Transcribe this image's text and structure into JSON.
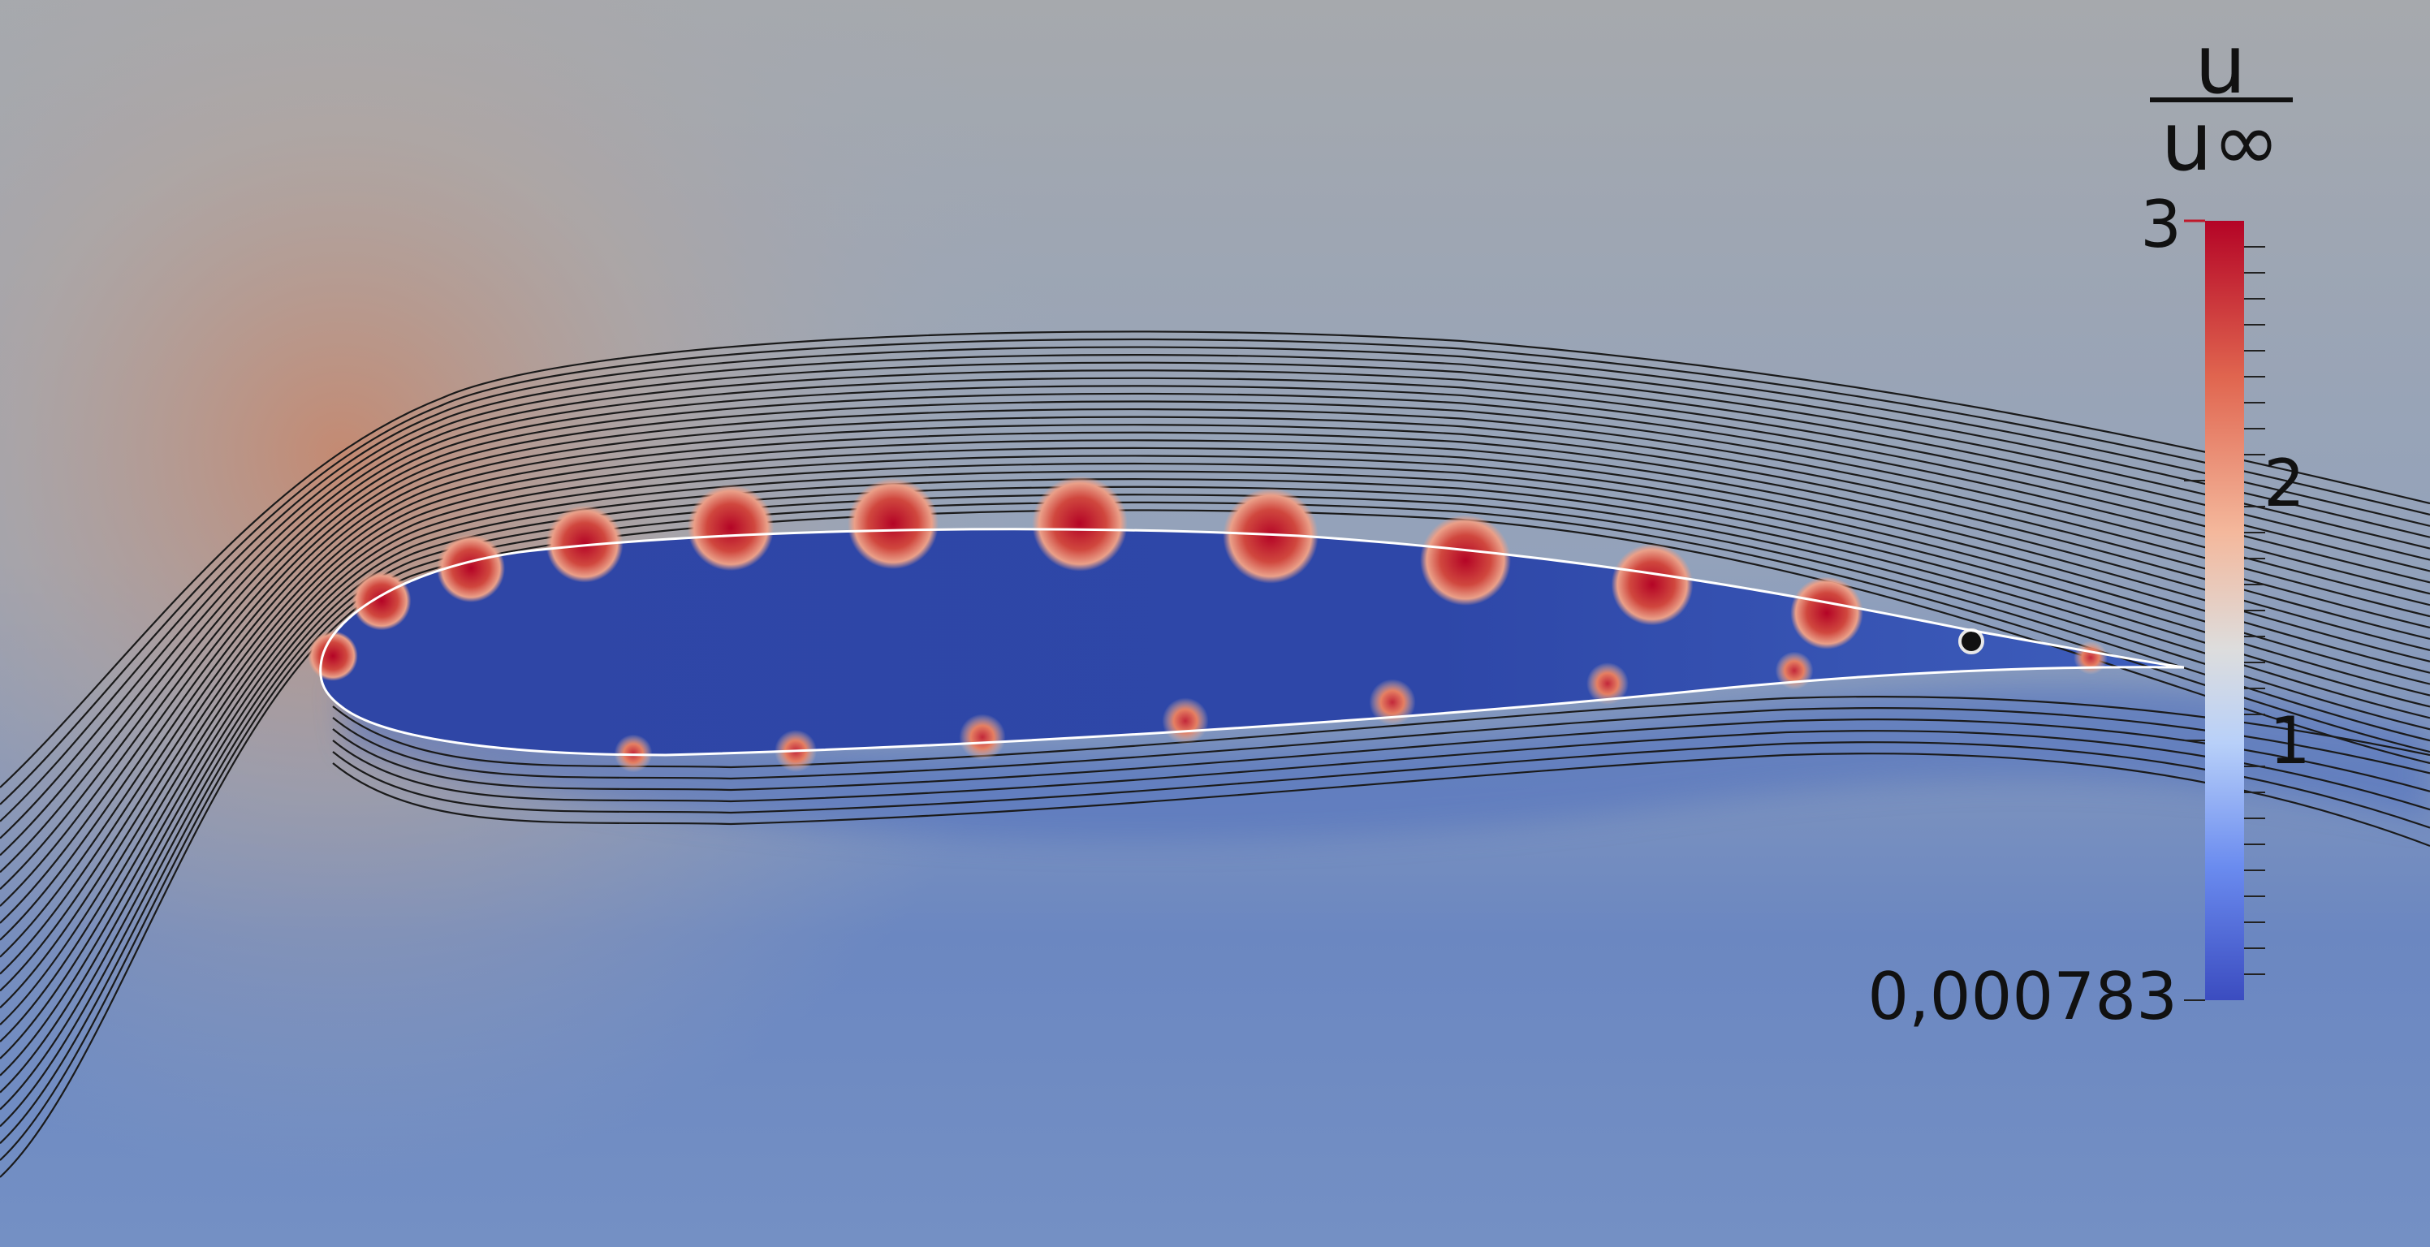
{
  "colorbar": {
    "title_numerator": "u",
    "title_denominator": "u∞",
    "ticks": [
      {
        "label": "3",
        "value": 3
      },
      {
        "label": "2",
        "value": 2
      },
      {
        "label": "1",
        "value": 1
      },
      {
        "label": "0,000783",
        "value": 0.000783
      }
    ],
    "range": [
      0.000783,
      3
    ],
    "colormap": [
      "#3b4cc0",
      "#6a8bef",
      "#b8d0f9",
      "#dddddd",
      "#f4b89c",
      "#e0654f",
      "#b40426"
    ]
  },
  "scene": {
    "background_color": "#7f96bb",
    "stagnation_tint": "#c5927a",
    "wake_color": "#3e5fb8",
    "streamline_color": "#1a1a1a",
    "airfoil_outline_color": "#ffffff"
  }
}
